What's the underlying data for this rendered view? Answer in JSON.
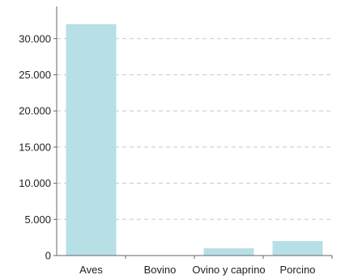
{
  "chart_data": {
    "type": "bar",
    "title": "",
    "xlabel": "",
    "ylabel": "",
    "categories": [
      "Aves",
      "Bovino",
      "Ovino y caprino",
      "Porcino"
    ],
    "values": [
      32000,
      0,
      1000,
      2000
    ],
    "ylim": [
      0,
      34000
    ],
    "yticks": [
      0,
      5000,
      10000,
      15000,
      20000,
      25000,
      30000
    ],
    "ytick_labels": [
      "0",
      "5.000",
      "10.000",
      "15.000",
      "20.000",
      "25.000",
      "30.000"
    ],
    "grid": "horizontal dashed",
    "legend": "none",
    "colors": {
      "bar": "#b7dfe6",
      "grid": "#c8c8c8",
      "axis": "#666666",
      "text": "#222222"
    }
  }
}
